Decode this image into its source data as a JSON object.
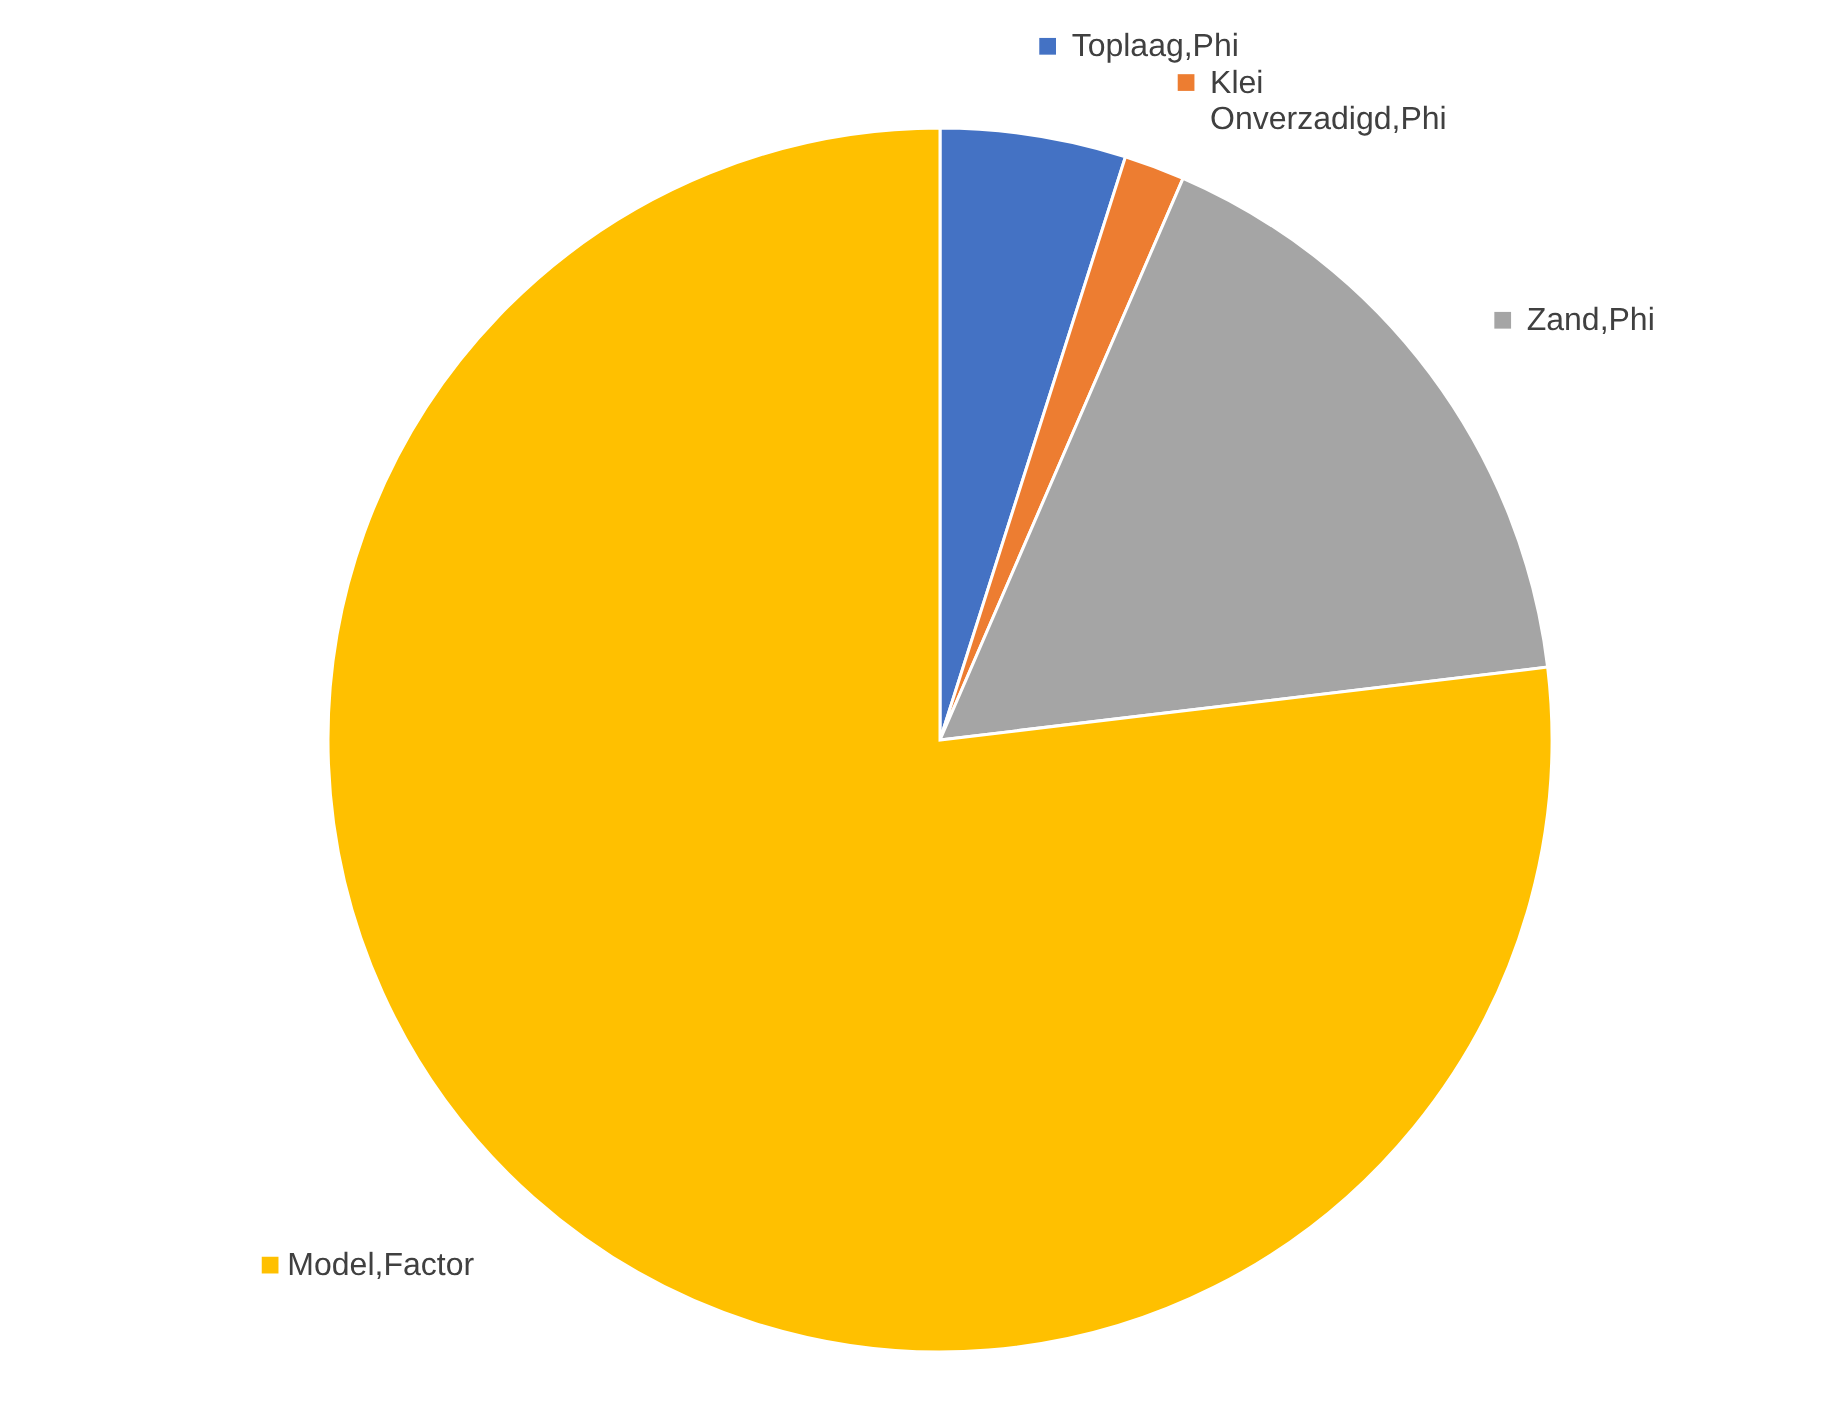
{
  "chart_data": {
    "type": "pie",
    "categories": [
      "Toplaag,Phi",
      "Klei Onverzadigd,Phi",
      "Zand,Phi",
      "Model,Factor"
    ],
    "values": [
      4.9,
      1.6,
      16.6,
      76.9
    ],
    "colors": [
      "#4472c4",
      "#ed7d31",
      "#a5a5a5",
      "#ffc000"
    ],
    "legend": "right"
  }
}
